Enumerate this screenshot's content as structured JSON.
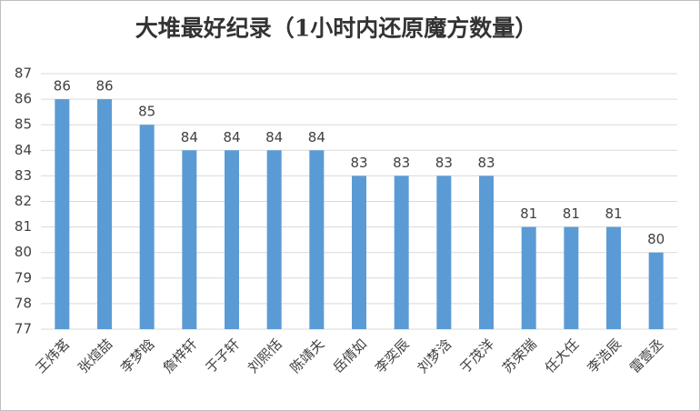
{
  "chart_data": {
    "type": "bar",
    "title": "大堆最好纪录（1小时内还原魔方数量）",
    "categories": [
      "王炜茗",
      "张煊喆",
      "李梦晗",
      "詹梓轩",
      "于子轩",
      "刘熙恬",
      "陈靖夫",
      "岳倩如",
      "李奕辰",
      "刘梦浛",
      "于茂洋",
      "苏荣瑞",
      "任大任",
      "李浩辰",
      "雷壹丞"
    ],
    "values": [
      86,
      86,
      85,
      84,
      84,
      84,
      84,
      83,
      83,
      83,
      83,
      81,
      81,
      81,
      80
    ],
    "color": "#5b9bd5",
    "ylim": [
      77,
      87
    ],
    "yticks": [
      77,
      78,
      79,
      80,
      81,
      82,
      83,
      84,
      85,
      86,
      87
    ],
    "grid": true
  }
}
